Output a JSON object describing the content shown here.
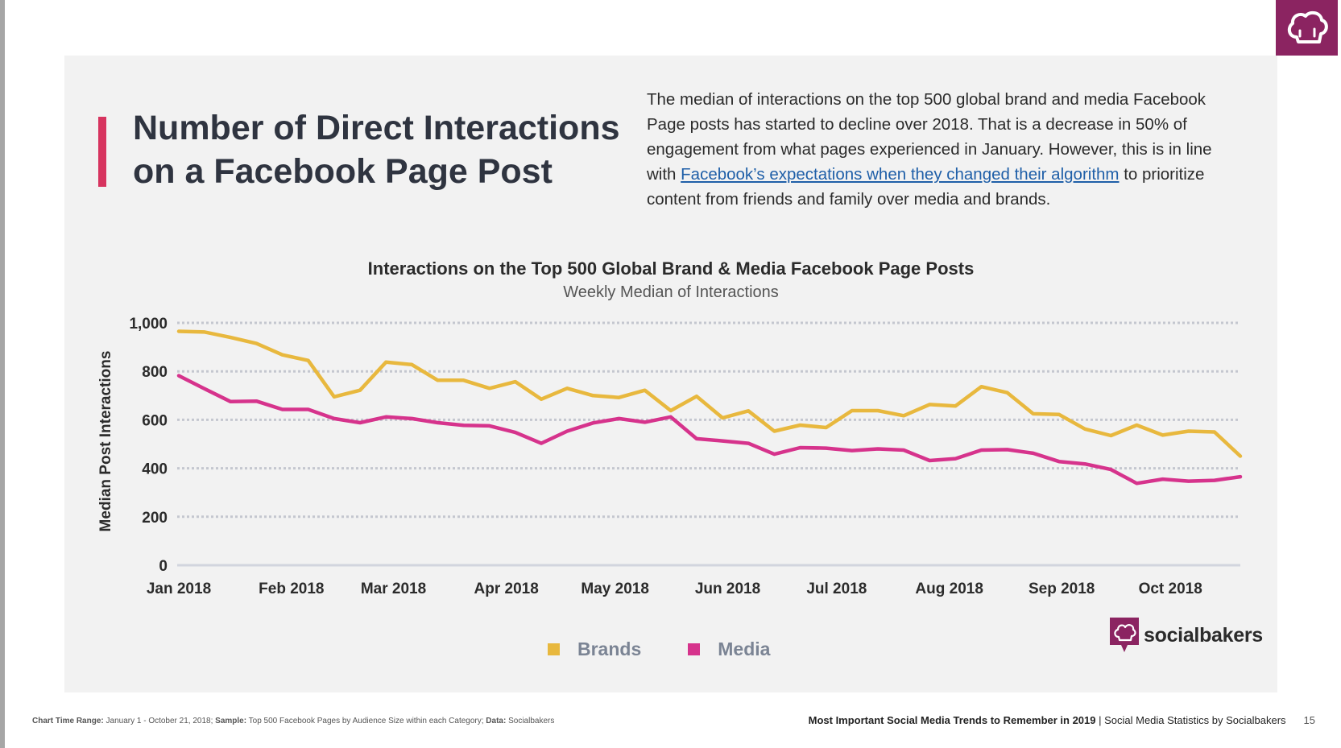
{
  "header": {
    "title_line1": "Number of Direct Interactions",
    "title_line2": "on a Facebook Page Post",
    "accent_color": "#d7345f"
  },
  "description": {
    "before_link": "The median of interactions on the top 500 global brand and media Facebook Page posts has started to decline over 2018. That is a decrease in 50% of engagement from what pages experienced in January. However, this is in line with ",
    "link_text": "Facebook’s expectations when they changed their algorithm",
    "after_link": " to prioritize content from friends and family over media and brands."
  },
  "chart_data": {
    "type": "line",
    "title": "Interactions on the Top 500 Global Brand & Media Facebook Page Posts",
    "subtitle": "Weekly Median of Interactions",
    "ylabel": "Median Post Interactions",
    "xlabel": "",
    "ylim": [
      0,
      1000
    ],
    "yticks": [
      0,
      200,
      400,
      600,
      800,
      1000
    ],
    "ytick_labels": [
      "0",
      "200",
      "400",
      "600",
      "800",
      "1,000"
    ],
    "x_labels": [
      "Jan 2018",
      "Feb 2018",
      "Mar 2018",
      "Apr 2018",
      "May 2018",
      "Jun 2018",
      "Jul 2018",
      "Aug 2018",
      "Sep 2018",
      "Oct 2018"
    ],
    "x_label_positions": [
      0,
      4.35,
      8.29,
      12.65,
      16.85,
      21.2,
      25.41,
      29.76,
      34.1,
      38.3
    ],
    "x": [
      0,
      1,
      2,
      3,
      4,
      5,
      6,
      7,
      8,
      9,
      10,
      11,
      12,
      13,
      14,
      15,
      16,
      17,
      18,
      19,
      20,
      21,
      22,
      23,
      24,
      25,
      26,
      27,
      28,
      29,
      30,
      31,
      32,
      33,
      34,
      35,
      36,
      37,
      38,
      39,
      40,
      41
    ],
    "grid": true,
    "legend_position": "bottom",
    "series": [
      {
        "name": "Brands",
        "color": "#e8b83e",
        "values": [
          965,
          962,
          940,
          915,
          868,
          845,
          695,
          722,
          838,
          828,
          763,
          763,
          730,
          757,
          685,
          730,
          700,
          692,
          722,
          638,
          697,
          608,
          637,
          553,
          578,
          568,
          638,
          638,
          617,
          663,
          657,
          737,
          712,
          625,
          622,
          562,
          535,
          578,
          537,
          553,
          550,
          450
        ]
      },
      {
        "name": "Media",
        "color": "#d6338c",
        "values": [
          782,
          728,
          675,
          677,
          643,
          643,
          605,
          588,
          612,
          605,
          588,
          577,
          575,
          548,
          503,
          553,
          587,
          605,
          590,
          612,
          522,
          513,
          503,
          458,
          485,
          483,
          473,
          480,
          475,
          432,
          440,
          475,
          477,
          462,
          428,
          418,
          395,
          338,
          355,
          347,
          350,
          365
        ]
      }
    ]
  },
  "brand": {
    "name": "socialbakers",
    "color": "#8b2461"
  },
  "footer": {
    "left_bold1": "Chart Time Range:",
    "left_text1": " January 1 - October 21, 2018;",
    "left_bold2": "Sample:",
    "left_text2": " Top 500 Facebook Pages by Audience Size within each Category;",
    "left_bold3": "Data:",
    "left_text3": " Socialbakers",
    "right_bold": "Most Important Social Media Trends to Remember in 2019",
    "right_text": " | Social Media Statistics by Socialbakers",
    "page_number": "15"
  }
}
